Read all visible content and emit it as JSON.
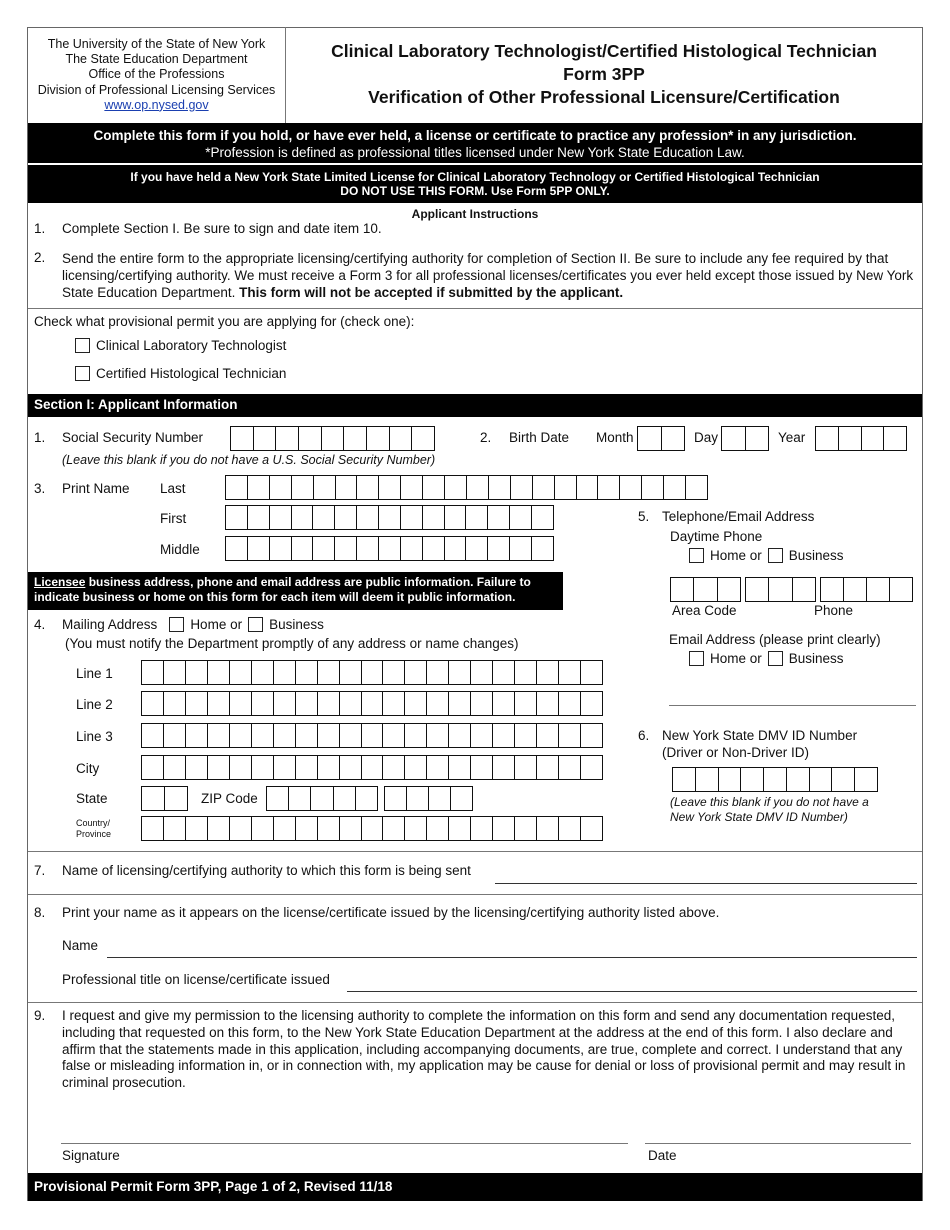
{
  "header": {
    "org_lines": [
      "The University of the State of New York",
      "The State Education Department",
      "Office of the Professions",
      "Division of Professional Licensing Services"
    ],
    "website": "www.op.nysed.gov",
    "title1": "Clinical Laboratory Technologist/Certified Histological Technician",
    "title2": "Form 3PP",
    "title3": "Verification of Other Professional Licensure/Certification"
  },
  "banner1": {
    "line1": "Complete this form if you hold, or have ever held, a license or certificate to practice any profession* in any jurisdiction.",
    "line2": "*Profession is defined as professional titles licensed  under New York State Education Law."
  },
  "banner2": {
    "line1": "If you have held a New York State Limited License for Clinical Laboratory Technology or Certified Histological Technician",
    "line2": "DO NOT USE THIS FORM. Use Form 5PP ONLY."
  },
  "instructions": {
    "heading": "Applicant Instructions",
    "items": [
      {
        "num": "1.",
        "text": "Complete Section I. Be sure to sign and date item 10."
      },
      {
        "num": "2.",
        "text": "Send the entire form to the appropriate licensing/certifying authority for completion of Section II. Be sure to include any fee required by that licensing/certifying authority. We must receive a Form 3 for all professional licenses/certificates you ever held except those issued by New York State Education Department. ",
        "bold": "This form will not be accepted if submitted by the applicant."
      }
    ]
  },
  "permit": {
    "prompt": "Check what provisional permit you are applying for (check one):",
    "options": [
      "Clinical Laboratory Technologist",
      "Certified Histological Technician"
    ]
  },
  "section1": {
    "title": "Section I: Applicant Information",
    "ssn": {
      "num": "1.",
      "label": "Social Security Number",
      "note": "(Leave this blank if you do not have a U.S. Social Security Number)"
    },
    "birth": {
      "num": "2.",
      "label": "Birth Date",
      "month": "Month",
      "day": "Day",
      "year": "Year"
    },
    "name": {
      "num": "3.",
      "label": "Print Name",
      "last": "Last",
      "first": "First",
      "middle": "Middle"
    },
    "public_notice": {
      "underlined": "Licensee",
      "line1": " business address, phone and email address are public information. Failure to",
      "line2": "indicate business or home on this form for each item will deem it public information."
    },
    "address": {
      "num": "4.",
      "label": "Mailing Address",
      "home": "Home or",
      "business": "Business",
      "note": "(You must notify the Department promptly of any address or name changes)",
      "line1": "Line 1",
      "line2": "Line 2",
      "line3": "Line 3",
      "city": "City",
      "state": "State",
      "zip": "ZIP Code",
      "country1": "Country/",
      "country2": "Province"
    },
    "phone": {
      "num": "5.",
      "label": "Telephone/Email Address",
      "daytime": "Daytime Phone",
      "home": "Home or",
      "business": "Business",
      "area_code": "Area Code",
      "phone": "Phone",
      "email_label": "Email Address (please print clearly)"
    },
    "dmv": {
      "num": "6.",
      "label": "New York State DMV ID Number",
      "sub": "(Driver or Non-Driver ID)",
      "note1": "(Leave this blank if you do not have a",
      "note2": "New York State DMV ID Number)"
    },
    "authority": {
      "num": "7.",
      "label": "Name of licensing/certifying authority to which this form is being sent"
    },
    "print_name": {
      "num": "8.",
      "label": "Print your name as it appears on the license/certificate issued by the licensing/certifying authority listed above.",
      "name": "Name",
      "title": "Professional title on license/certificate issued"
    },
    "consent": {
      "num": "9.",
      "text": "I request and give my permission to the licensing authority to complete the information on this form and send any documentation requested, including that requested on this form, to the New York State Education Department at the address at the end of this form. I also declare and affirm that the statements made in this application, including accompanying documents, are true, complete and correct. I understand that any false or misleading information in, or in connection with, my application may be cause for denial or loss of provisional permit and may result in criminal prosecution.",
      "signature": "Signature",
      "date": "Date"
    }
  },
  "footer": "Provisional Permit Form 3PP, Page 1 of 2, Revised 11/18"
}
